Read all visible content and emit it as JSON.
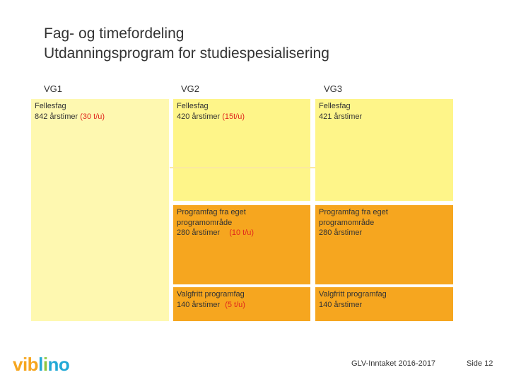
{
  "title": {
    "line1": "Fag- og timefordeling",
    "line2": "Utdanningsprogram for studiespesialisering"
  },
  "columns": [
    "VG1",
    "VG2",
    "VG3"
  ],
  "vg1": {
    "fellesfag_title": "Fellesfag",
    "fellesfag_hours": "842 årstimer",
    "fellesfag_units": "(30 t/u)"
  },
  "vg2": {
    "fellesfag_title": "Fellesfag",
    "fellesfag_hours": "420 årstimer",
    "fellesfag_units": "(15t/u)",
    "programfag_title": "Programfag fra eget",
    "programfag_title2": "programområde",
    "programfag_hours": "280 årstimer",
    "programfag_units": "(10 t/u)",
    "valgfritt_title": "Valgfritt programfag",
    "valgfritt_hours": "140 årstimer",
    "valgfritt_units": "(5 t/u)"
  },
  "vg3": {
    "fellesfag_title": "Fellesfag",
    "fellesfag_hours": "421 årstimer",
    "programfag_title": "Programfag fra eget",
    "programfag_title2": "programområde",
    "programfag_hours": "280 årstimer",
    "valgfritt_title": "Valgfritt programfag",
    "valgfritt_hours": "140 årstimer"
  },
  "logo": {
    "part1": "vib",
    "part2": "l",
    "part3": "i",
    "part4": "no"
  },
  "footer": {
    "left": "GLV-Inntaket 2016-2017",
    "right": "Side 12"
  },
  "colors": {
    "light_yellow": "#fef589",
    "orange": "#f6a61f",
    "red_text": "#e0261c"
  }
}
